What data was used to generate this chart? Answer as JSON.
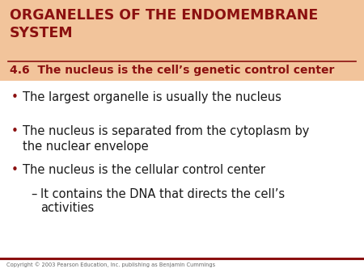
{
  "header_bg_color": "#F2C49B",
  "body_bg_color": "#FFFFFF",
  "header_title": "ORGANELLES OF THE ENDOMEMBRANE\nSYSTEM",
  "header_title_color": "#8B1010",
  "subheader": "4.6  The nucleus is the cell’s genetic control center",
  "subheader_color": "#8B1010",
  "header_line_color": "#8B1010",
  "bullet_color": "#8B1010",
  "bullet_text_color": "#1a1a1a",
  "bullets": [
    "The largest organelle is usually the nucleus",
    "The nucleus is separated from the cytoplasm by\nthe nuclear envelope",
    "The nucleus is the cellular control center"
  ],
  "sub_bullet_dash": "–",
  "sub_bullet_line1": "It contains the DNA that directs the cell’s",
  "sub_bullet_line2": "activities",
  "footer_line_color": "#8B1010",
  "footer_text": "Copyright © 2003 Pearson Education, Inc. publishing as Benjamin Cummings",
  "footer_text_color": "#666666",
  "fig_width": 4.5,
  "fig_height": 3.38,
  "dpi": 100
}
